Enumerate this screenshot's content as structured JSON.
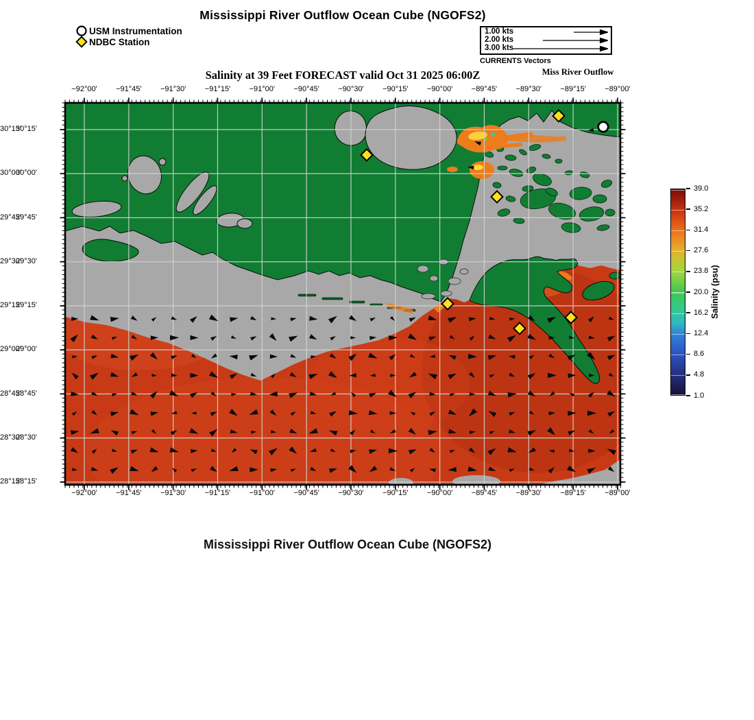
{
  "colors": {
    "land_green": "#117d33",
    "island_green": "#0c5f26",
    "nodata_gray": "#a8a8a8",
    "gulf_red": "#c83a16",
    "gulf_dark_red": "#a82a0e",
    "plume_orange": "#ec7c1c",
    "plume_yellow": "#ffd83d",
    "plume_teal": "#36c9a2",
    "plume_lime": "#5fd04a",
    "gridline": "#d4d4d4",
    "ndbc_yellow": "#ffe11a",
    "station_white": "#ffffff",
    "ink": "#000000"
  },
  "header": {
    "title": "Mississippi River Outflow Ocean Cube (NGOFS2)",
    "legend": [
      {
        "marker": "circle",
        "label": "USM Instrumentation"
      },
      {
        "marker": "diamond",
        "label": "NDBC Station"
      }
    ],
    "vector_legend": {
      "rows": [
        {
          "label": "1.00 kts"
        },
        {
          "label": "2.00 kts"
        },
        {
          "label": "3.00 kts"
        }
      ],
      "caption": "CURRENTS Vectors"
    },
    "subtitle": "Salinity at 39 Feet FORECAST valid Oct 31 2025 06:00Z",
    "region_label": "Miss River Outflow"
  },
  "map": {
    "x_tick_labels": [
      "−92°00'",
      "−91°45'",
      "−91°30'",
      "−91°15'",
      "−91°00'",
      "−90°45'",
      "−90°30'",
      "−90°15'",
      "−90°00'",
      "−89°45'",
      "−89°30'",
      "−89°15'",
      "−89°00'"
    ],
    "y_tick_labels": [
      "30°15'",
      "30°00'",
      "29°45'",
      "29°30'",
      "29°15'",
      "29°00'",
      "28°45'",
      "28°30'",
      "28°15'"
    ]
  },
  "colorbar": {
    "tick_labels": [
      "39.0",
      "35.2",
      "31.4",
      "27.6",
      "23.8",
      "20.0",
      "16.2",
      "12.4",
      "8.6",
      "4.8",
      "1.0"
    ],
    "axis_label": "Salinity (psu)",
    "gradient": [
      [
        0,
        "#1a1038"
      ],
      [
        0.1,
        "#26307e"
      ],
      [
        0.2,
        "#2d53c4"
      ],
      [
        0.3,
        "#2f86d8"
      ],
      [
        0.35,
        "#2fb9c0"
      ],
      [
        0.42,
        "#35c98f"
      ],
      [
        0.5,
        "#3fc64f"
      ],
      [
        0.6,
        "#a0d73e"
      ],
      [
        0.7,
        "#e4b22f"
      ],
      [
        0.78,
        "#ee7e1d"
      ],
      [
        0.88,
        "#d03c12"
      ],
      [
        1,
        "#7c0a0a"
      ]
    ]
  },
  "footer": {
    "title": "Mississippi River Outflow Ocean Cube (NGOFS2)"
  },
  "chart_data": {
    "type": "heatmap",
    "title": "Mississippi River Outflow Ocean Cube (NGOFS2)",
    "subtitle": "Salinity at 39 Feet FORECAST valid Oct 31 2025 06:00Z",
    "model": "NGOFS2",
    "variable": "Salinity (psu)",
    "depth": "39 Feet",
    "valid_time": "Oct 31 2025 06:00Z",
    "region_label": "Miss River Outflow",
    "colorbar_range": [
      1.0,
      39.0
    ],
    "colorbar_ticks": [
      39.0,
      35.2,
      31.4,
      27.6,
      23.8,
      20.0,
      16.2,
      12.4,
      8.6,
      4.8,
      1.0
    ],
    "lon_ticks_deg": [
      -92.0,
      -91.75,
      -91.5,
      -91.25,
      -91.0,
      -90.75,
      -90.5,
      -90.25,
      -90.0,
      -89.75,
      -89.5,
      -89.25,
      -89.0
    ],
    "lat_ticks_deg": [
      30.25,
      30.0,
      29.75,
      29.5,
      29.25,
      29.0,
      28.75,
      28.5,
      28.25
    ],
    "grid_on": true,
    "legend_position": "top",
    "currents_reference_kts": [
      1.0,
      2.0,
      3.0
    ],
    "offshore_salinity_estimate_psu": 34,
    "river_plume_salinity_estimate_psu": [
      16,
      31
    ],
    "currents_direction_offshore": "predominantly eastward with scattered reversals",
    "stations": {
      "usm_instrumentation": [
        {
          "lon": -89.08,
          "lat": 30.27
        }
      ],
      "ndbc": [
        {
          "lon": -89.33,
          "lat": 30.33
        },
        {
          "lon": -90.41,
          "lat": 30.11
        },
        {
          "lon": -89.68,
          "lat": 29.87
        },
        {
          "lon": -89.96,
          "lat": 29.26
        },
        {
          "lon": -89.26,
          "lat": 29.18
        },
        {
          "lon": -89.55,
          "lat": 29.12
        }
      ]
    }
  }
}
